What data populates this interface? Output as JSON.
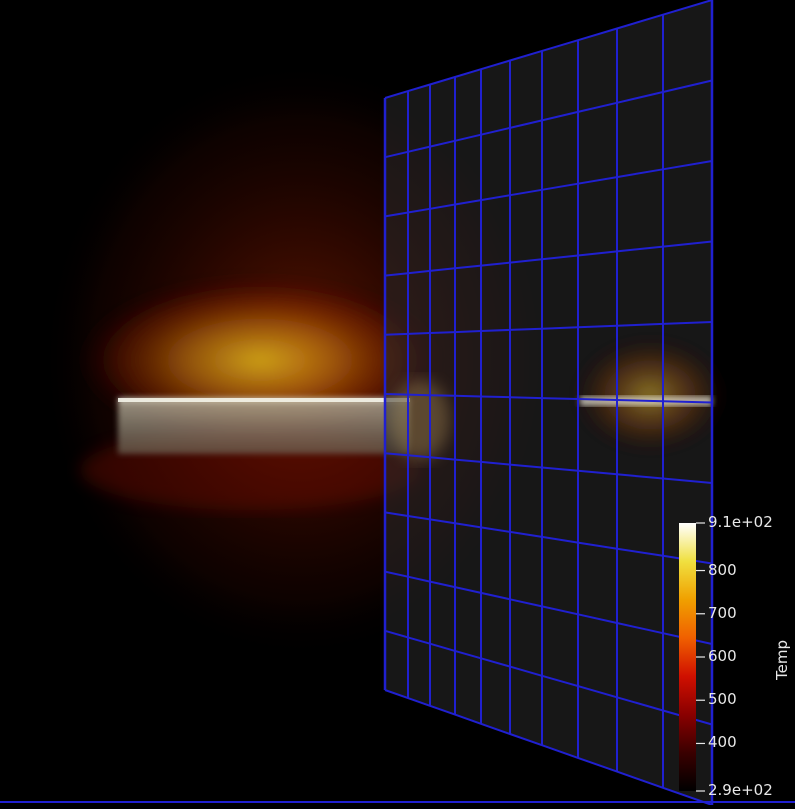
{
  "colorbar": {
    "title": "Temp",
    "range": [
      290,
      910
    ],
    "ticks": [
      {
        "value": 910,
        "label": "9.1e+02"
      },
      {
        "value": 800,
        "label": "800"
      },
      {
        "value": 700,
        "label": "700"
      },
      {
        "value": 600,
        "label": "600"
      },
      {
        "value": 500,
        "label": "500"
      },
      {
        "value": 400,
        "label": "400"
      },
      {
        "value": 290,
        "label": "2.9e+02"
      }
    ],
    "colors": [
      "#000000",
      "#3a0000",
      "#8a0000",
      "#d01000",
      "#f06000",
      "#f0a000",
      "#f0e040",
      "#ffffff"
    ]
  },
  "colors": {
    "grid": "#2020d0",
    "background": "#000000"
  }
}
